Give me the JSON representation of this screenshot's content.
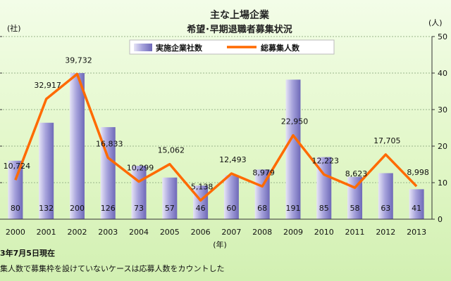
{
  "chart_data": {
    "type": "bar",
    "title": "主な上場企業",
    "subtitle": "希望･早期退職者募集状況",
    "categories": [
      "2000",
      "2001",
      "2002",
      "2003",
      "2004",
      "2005",
      "2006",
      "2007",
      "2008",
      "2009",
      "2010",
      "2011",
      "2012",
      "2013"
    ],
    "xlabel": "(年)",
    "y_left_unit": "(社)",
    "y_right_unit": "(人)",
    "y_right_ticks": [
      "0",
      "10",
      "20",
      "30",
      "40",
      "50"
    ],
    "y_left_range": [
      0,
      250
    ],
    "y_right_range": [
      0,
      50000
    ],
    "series": [
      {
        "name": "実施企業社数",
        "kind": "bar",
        "axis": "left",
        "color": "#8a86c8",
        "values": [
          80,
          132,
          200,
          126,
          73,
          57,
          46,
          60,
          68,
          191,
          85,
          58,
          63,
          41
        ]
      },
      {
        "name": "総募集人数",
        "kind": "line",
        "axis": "right",
        "color": "#ff6a00",
        "values": [
          10724,
          32917,
          39732,
          16833,
          10299,
          15062,
          5138,
          12493,
          8979,
          22950,
          12223,
          8623,
          17705,
          8998
        ]
      }
    ],
    "people_labels": [
      "10,724",
      "32,917",
      "39,732",
      "16,833",
      "10,299",
      "15,062",
      "5,138",
      "12,493",
      "8,979",
      "22,950",
      "12,223",
      "8,623",
      "17,705",
      "8,998"
    ],
    "legend_placement": "top-center",
    "grid": true
  },
  "notes": {
    "line1": "3年7月5日現在",
    "line2": "集人数で募集枠を設けていないケースは応募人数をカウントした"
  }
}
